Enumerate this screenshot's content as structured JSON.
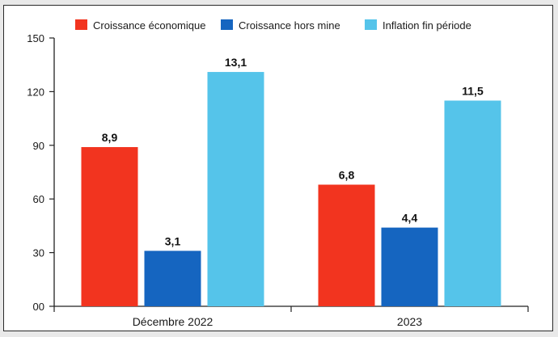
{
  "chart_data": {
    "type": "bar",
    "title": "",
    "xlabel": "",
    "ylabel": "",
    "ylim": [
      0,
      150
    ],
    "yticks": [
      0,
      30,
      60,
      90,
      120,
      150
    ],
    "ytick_labels": [
      "00",
      "30",
      "60",
      "90",
      "120",
      "150"
    ],
    "grid": false,
    "legend_position": "top",
    "categories": [
      "Décembre 2022",
      "2023"
    ],
    "series": [
      {
        "name": "Croissance économique",
        "color": "#f2341f",
        "values": [
          89,
          68
        ],
        "labels": [
          "8,9",
          "6,8"
        ]
      },
      {
        "name": "Croissance hors mine",
        "color": "#1565c0",
        "values": [
          31,
          44
        ],
        "labels": [
          "3,1",
          "4,4"
        ]
      },
      {
        "name": "Inflation fin période",
        "color": "#55c4ea",
        "values": [
          131,
          115
        ],
        "labels": [
          "13,1",
          "11,5"
        ]
      }
    ]
  }
}
